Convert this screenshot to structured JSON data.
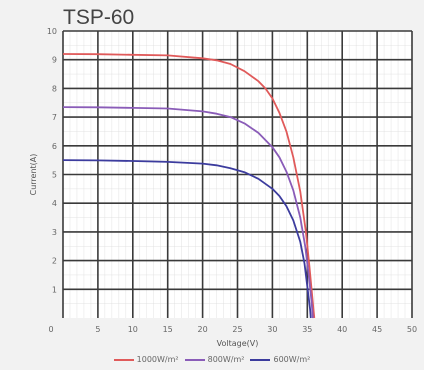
{
  "chart_data": {
    "type": "line",
    "title": "TSP-60",
    "xlabel": "Voltage(V)",
    "ylabel": "Current(A)",
    "xlim": [
      0,
      50
    ],
    "ylim": [
      0,
      10
    ],
    "x_ticks": [
      "0",
      "5",
      "10",
      "15",
      "20",
      "25",
      "30",
      "35",
      "40",
      "45",
      "50"
    ],
    "y_ticks": [
      "1",
      "2",
      "3",
      "4",
      "5",
      "6",
      "7",
      "8",
      "9",
      "10"
    ],
    "grid": true,
    "legend_position": "bottom",
    "series": [
      {
        "name": "1000W/m²",
        "color": "#e05a5a",
        "points": [
          [
            0,
            9.2
          ],
          [
            5,
            9.19
          ],
          [
            10,
            9.17
          ],
          [
            15,
            9.15
          ],
          [
            20,
            9.05
          ],
          [
            22,
            8.98
          ],
          [
            24,
            8.85
          ],
          [
            26,
            8.6
          ],
          [
            28,
            8.25
          ],
          [
            29,
            8.0
          ],
          [
            30,
            7.65
          ],
          [
            31,
            7.15
          ],
          [
            32,
            6.5
          ],
          [
            33,
            5.6
          ],
          [
            34,
            4.4
          ],
          [
            34.8,
            3.0
          ],
          [
            35.3,
            1.8
          ],
          [
            35.8,
            0.5
          ],
          [
            36,
            0.0
          ]
        ]
      },
      {
        "name": "800W/m²",
        "color": "#8a5cb8",
        "points": [
          [
            0,
            7.35
          ],
          [
            5,
            7.34
          ],
          [
            10,
            7.32
          ],
          [
            15,
            7.3
          ],
          [
            20,
            7.2
          ],
          [
            22,
            7.12
          ],
          [
            24,
            7.0
          ],
          [
            26,
            6.78
          ],
          [
            28,
            6.45
          ],
          [
            30,
            5.95
          ],
          [
            31,
            5.6
          ],
          [
            32,
            5.1
          ],
          [
            33,
            4.45
          ],
          [
            34,
            3.5
          ],
          [
            34.7,
            2.5
          ],
          [
            35.2,
            1.5
          ],
          [
            35.6,
            0.6
          ],
          [
            35.8,
            0.0
          ]
        ]
      },
      {
        "name": "600W/m²",
        "color": "#3c3c9e",
        "points": [
          [
            0,
            5.5
          ],
          [
            5,
            5.49
          ],
          [
            10,
            5.47
          ],
          [
            15,
            5.44
          ],
          [
            20,
            5.38
          ],
          [
            22,
            5.32
          ],
          [
            24,
            5.22
          ],
          [
            26,
            5.08
          ],
          [
            28,
            4.85
          ],
          [
            30,
            4.5
          ],
          [
            31,
            4.25
          ],
          [
            32,
            3.9
          ],
          [
            33,
            3.4
          ],
          [
            34,
            2.65
          ],
          [
            34.6,
            1.9
          ],
          [
            35.0,
            1.1
          ],
          [
            35.4,
            0.3
          ],
          [
            35.5,
            0.0
          ]
        ]
      }
    ]
  }
}
